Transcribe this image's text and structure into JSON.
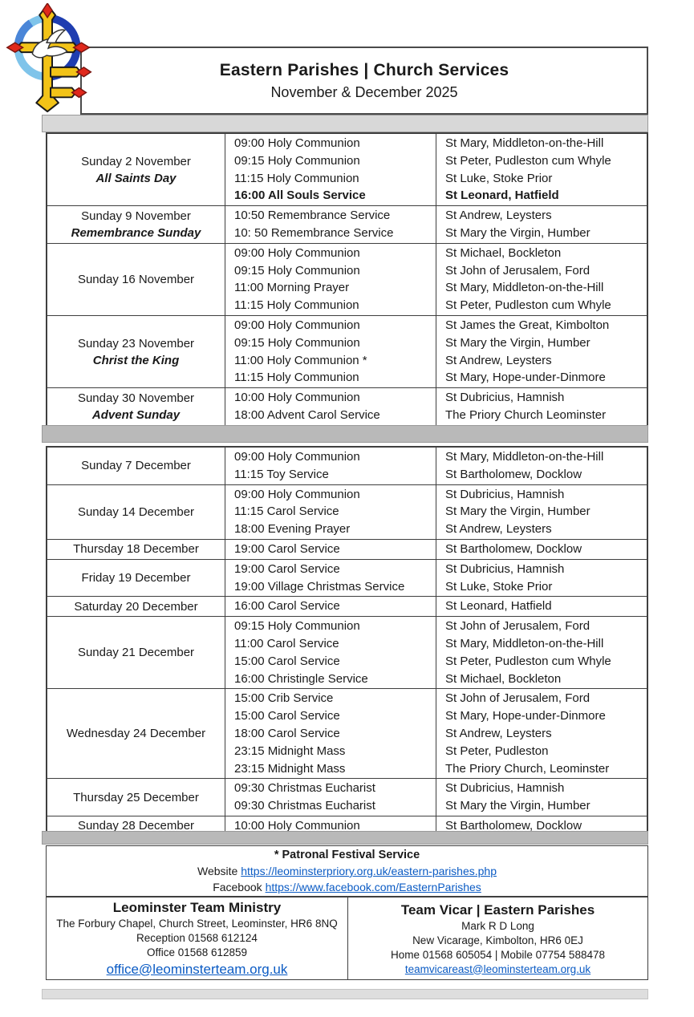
{
  "theme": {
    "link_color": "#0b5bc4",
    "band_light": "#d8d8d8",
    "band_mid": "#b9b9b9",
    "border_dark": "#3f3f3f",
    "logo_gold": "#f2c318",
    "logo_blue": "#1f3db0",
    "logo_light_blue": "#7fc4ea",
    "logo_red": "#e0281c"
  },
  "header": {
    "title": "Eastern Parishes | Church Services",
    "subtitle": "November & December 2025",
    "logo": "eastern-parishes-cross-dove-logo"
  },
  "schedule": {
    "sections": [
      {
        "name": "november",
        "rows": [
          {
            "date": "Sunday 2 November",
            "festival": "All Saints Day",
            "services": [
              {
                "service": "09:00 Holy Communion",
                "church": "St Mary, Middleton-on-the-Hill"
              },
              {
                "service": "09:15 Holy Communion",
                "church": "St Peter, Pudleston cum Whyle"
              },
              {
                "service": "11:15 Holy Communion",
                "church": "St Luke, Stoke Prior"
              },
              {
                "service": "16:00 All Souls Service",
                "church": "St Leonard, Hatfield",
                "bold": true
              }
            ]
          },
          {
            "date": "Sunday 9 November",
            "festival": "Remembrance Sunday",
            "services": [
              {
                "service": "10:50 Remembrance Service",
                "church": "St Andrew, Leysters"
              },
              {
                "service": "10: 50 Remembrance Service",
                "church": "St Mary the Virgin, Humber"
              }
            ]
          },
          {
            "date": "Sunday 16 November",
            "festival": "",
            "services": [
              {
                "service": "09:00 Holy Communion",
                "church": "St Michael, Bockleton"
              },
              {
                "service": "09:15 Holy Communion",
                "church": "St John of Jerusalem, Ford"
              },
              {
                "service": "11:00 Morning Prayer",
                "church": "St Mary, Middleton-on-the-Hill"
              },
              {
                "service": "11:15 Holy Communion",
                "church": "St Peter, Pudleston cum Whyle"
              }
            ]
          },
          {
            "date": "Sunday 23 November",
            "festival": "Christ the King",
            "services": [
              {
                "service": "09:00 Holy Communion",
                "church": "St James the Great, Kimbolton"
              },
              {
                "service": "09:15 Holy Communion",
                "church": "St Mary the Virgin, Humber"
              },
              {
                "service": "11:00 Holy Communion *",
                "church": "St Andrew, Leysters"
              },
              {
                "service": "11:15 Holy Communion",
                "church": "St Mary, Hope-under-Dinmore"
              }
            ]
          },
          {
            "date": "Sunday 30 November",
            "festival": "Advent Sunday",
            "services": [
              {
                "service": "10:00 Holy Communion",
                "church": "St Dubricius, Hamnish"
              },
              {
                "service": "18:00 Advent Carol Service",
                "church": "The Priory Church Leominster"
              }
            ]
          }
        ]
      },
      {
        "name": "december",
        "rows": [
          {
            "date": "Sunday 7 December",
            "festival": "",
            "services": [
              {
                "service": "09:00 Holy Communion",
                "church": "St Mary, Middleton-on-the-Hill"
              },
              {
                "service": "11:15 Toy Service",
                "church": "St Bartholomew, Docklow"
              }
            ]
          },
          {
            "date": "Sunday 14 December",
            "festival": "",
            "services": [
              {
                "service": "09:00 Holy Communion",
                "church": "St Dubricius, Hamnish"
              },
              {
                "service": "11:15 Carol Service",
                "church": "St Mary the Virgin, Humber"
              },
              {
                "service": "18:00 Evening Prayer",
                "church": "St Andrew, Leysters"
              }
            ]
          },
          {
            "date": "Thursday 18 December",
            "festival": "",
            "services": [
              {
                "service": "19:00 Carol Service",
                "church": "St Bartholomew, Docklow"
              }
            ]
          },
          {
            "date": "Friday 19 December",
            "festival": "",
            "services": [
              {
                "service": "19:00 Carol Service",
                "church": "St Dubricius, Hamnish"
              },
              {
                "service": "19:00 Village Christmas Service",
                "church": "St Luke, Stoke Prior"
              }
            ]
          },
          {
            "date": "Saturday 20 December",
            "festival": "",
            "services": [
              {
                "service": "16:00 Carol Service",
                "church": "St Leonard, Hatfield"
              }
            ]
          },
          {
            "date": "Sunday 21 December",
            "festival": "",
            "services": [
              {
                "service": "09:15 Holy Communion",
                "church": "St John of Jerusalem, Ford"
              },
              {
                "service": "11:00 Carol Service",
                "church": "St Mary, Middleton-on-the-Hill"
              },
              {
                "service": "15:00 Carol Service",
                "church": "St Peter, Pudleston cum Whyle"
              },
              {
                "service": "16:00 Christingle Service",
                "church": "St Michael, Bockleton"
              }
            ]
          },
          {
            "date": "Wednesday 24 December",
            "festival": "",
            "services": [
              {
                "service": "15:00 Crib Service",
                "church": "St John of Jerusalem, Ford"
              },
              {
                "service": "15:00 Carol Service",
                "church": "St Mary, Hope-under-Dinmore"
              },
              {
                "service": "18:00 Carol Service",
                "church": "St Andrew, Leysters"
              },
              {
                "service": "23:15 Midnight Mass",
                "church": "St Peter, Pudleston"
              },
              {
                "service": "23:15 Midnight Mass",
                "church": "The Priory Church, Leominster"
              }
            ]
          },
          {
            "date": "Thursday 25 December",
            "festival": "",
            "services": [
              {
                "service": "09:30 Christmas Eucharist",
                "church": "St Dubricius, Hamnish"
              },
              {
                "service": "09:30 Christmas Eucharist",
                "church": "St Mary the Virgin, Humber"
              }
            ]
          },
          {
            "date": "Sunday 28 December",
            "festival": "",
            "services": [
              {
                "service": "10:00 Holy Communion",
                "church": "St Bartholomew, Docklow"
              }
            ]
          }
        ]
      }
    ]
  },
  "notes": {
    "patronal": "* Patronal Festival Service",
    "website_label": "Website ",
    "website_url": "https://leominsterpriory.org.uk/eastern-parishes.php",
    "facebook_label": "Facebook ",
    "facebook_url": "https://www.facebook.com/EasternParishes"
  },
  "footer": {
    "left": {
      "title": "Leominster Team Ministry",
      "line1": "The Forbury Chapel, Church Street, Leominster, HR6 8NQ",
      "line2": "Reception 01568 612124",
      "line3": "Office 01568 612859",
      "email": "office@leominsterteam.org.uk"
    },
    "right": {
      "title": "Team Vicar | Eastern Parishes",
      "line1": "Mark R D Long",
      "line2": "New Vicarage, Kimbolton, HR6 0EJ",
      "line3": "Home 01568 605054 | Mobile 07754 588478",
      "email": "teamvicareast@leominsterteam.org.uk"
    }
  }
}
